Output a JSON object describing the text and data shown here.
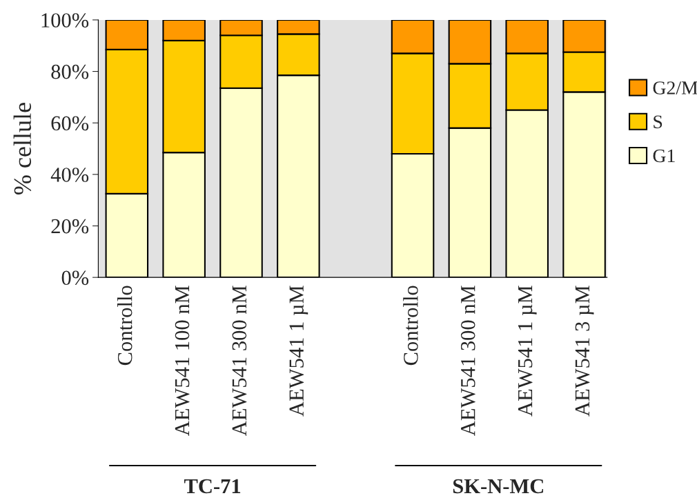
{
  "chart_data": {
    "type": "bar",
    "stacked": true,
    "ylabel": "% cellule",
    "categories": [
      "Controllo",
      "AEW541 100 nM",
      "AEW541 300 nM",
      "AEW541 1 µM",
      null,
      "Controllo",
      "AEW541 300 nM",
      "AEW541 1 µM",
      "AEW541 3 µM"
    ],
    "series": [
      {
        "name": "G1",
        "color": "#ffffcc",
        "values": [
          32.5,
          48.5,
          73.5,
          78.5,
          null,
          48,
          58,
          65,
          72
        ]
      },
      {
        "name": "S",
        "color": "#ffcc00",
        "values": [
          56,
          43.5,
          20.5,
          16,
          null,
          39,
          25,
          22,
          15.5
        ]
      },
      {
        "name": "G2/M",
        "color": "#ff9900",
        "values": [
          11.5,
          8,
          6,
          5.5,
          null,
          13,
          17,
          13,
          12.5
        ]
      }
    ],
    "ylim": [
      0,
      100
    ],
    "yticks": [
      {
        "value": 0,
        "label": "0%"
      },
      {
        "value": 20,
        "label": "20%"
      },
      {
        "value": 40,
        "label": "40%"
      },
      {
        "value": 60,
        "label": "60%"
      },
      {
        "value": 80,
        "label": "80%"
      },
      {
        "value": 100,
        "label": "100%"
      }
    ],
    "grid": false,
    "legend": "right",
    "annotations": [
      "TC-71",
      "SK-N-MC"
    ]
  }
}
